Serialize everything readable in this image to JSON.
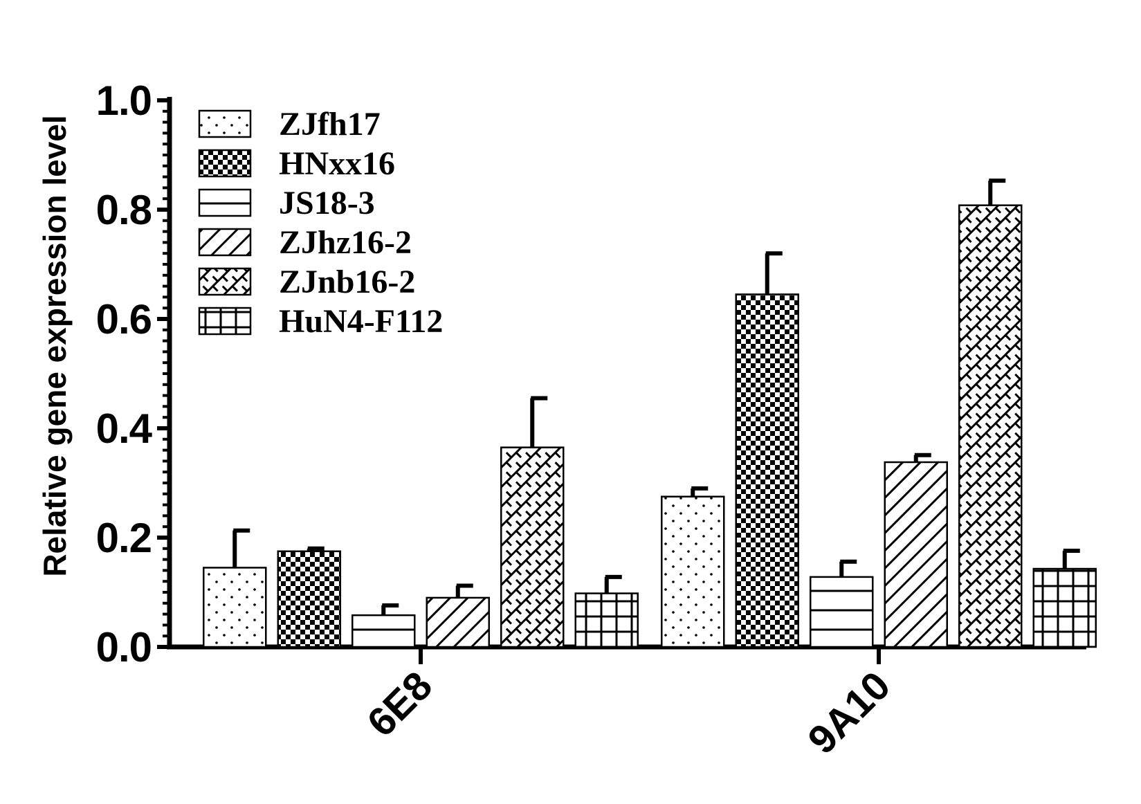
{
  "chart_data": {
    "type": "bar",
    "ylabel": "Relative gene expression level",
    "xlabel": "",
    "ylim": [
      0,
      1.0
    ],
    "yticks": [
      "0.0",
      "0.2",
      "0.4",
      "0.6",
      "0.8",
      "1.0"
    ],
    "categories": [
      "6E8",
      "9A10"
    ],
    "legend_position": "top-left",
    "series": [
      {
        "name": "ZJfh17",
        "pattern": "dots",
        "values": [
          0.145,
          0.275
        ],
        "errors": [
          0.068,
          0.015
        ]
      },
      {
        "name": "HNxx16",
        "pattern": "checker",
        "values": [
          0.175,
          0.645
        ],
        "errors": [
          0.005,
          0.075
        ]
      },
      {
        "name": "JS18-3",
        "pattern": "horizontal-lines",
        "values": [
          0.058,
          0.128
        ],
        "errors": [
          0.018,
          0.028
        ]
      },
      {
        "name": "ZJhz16-2",
        "pattern": "diagonal-lines",
        "values": [
          0.09,
          0.338
        ],
        "errors": [
          0.022,
          0.013
        ]
      },
      {
        "name": "ZJnb16-2",
        "pattern": "crosshatch",
        "values": [
          0.365,
          0.808
        ],
        "errors": [
          0.09,
          0.045
        ]
      },
      {
        "name": "HuN4-F112",
        "pattern": "grid",
        "values": [
          0.098,
          0.143
        ],
        "errors": [
          0.03,
          0.033
        ]
      }
    ]
  }
}
